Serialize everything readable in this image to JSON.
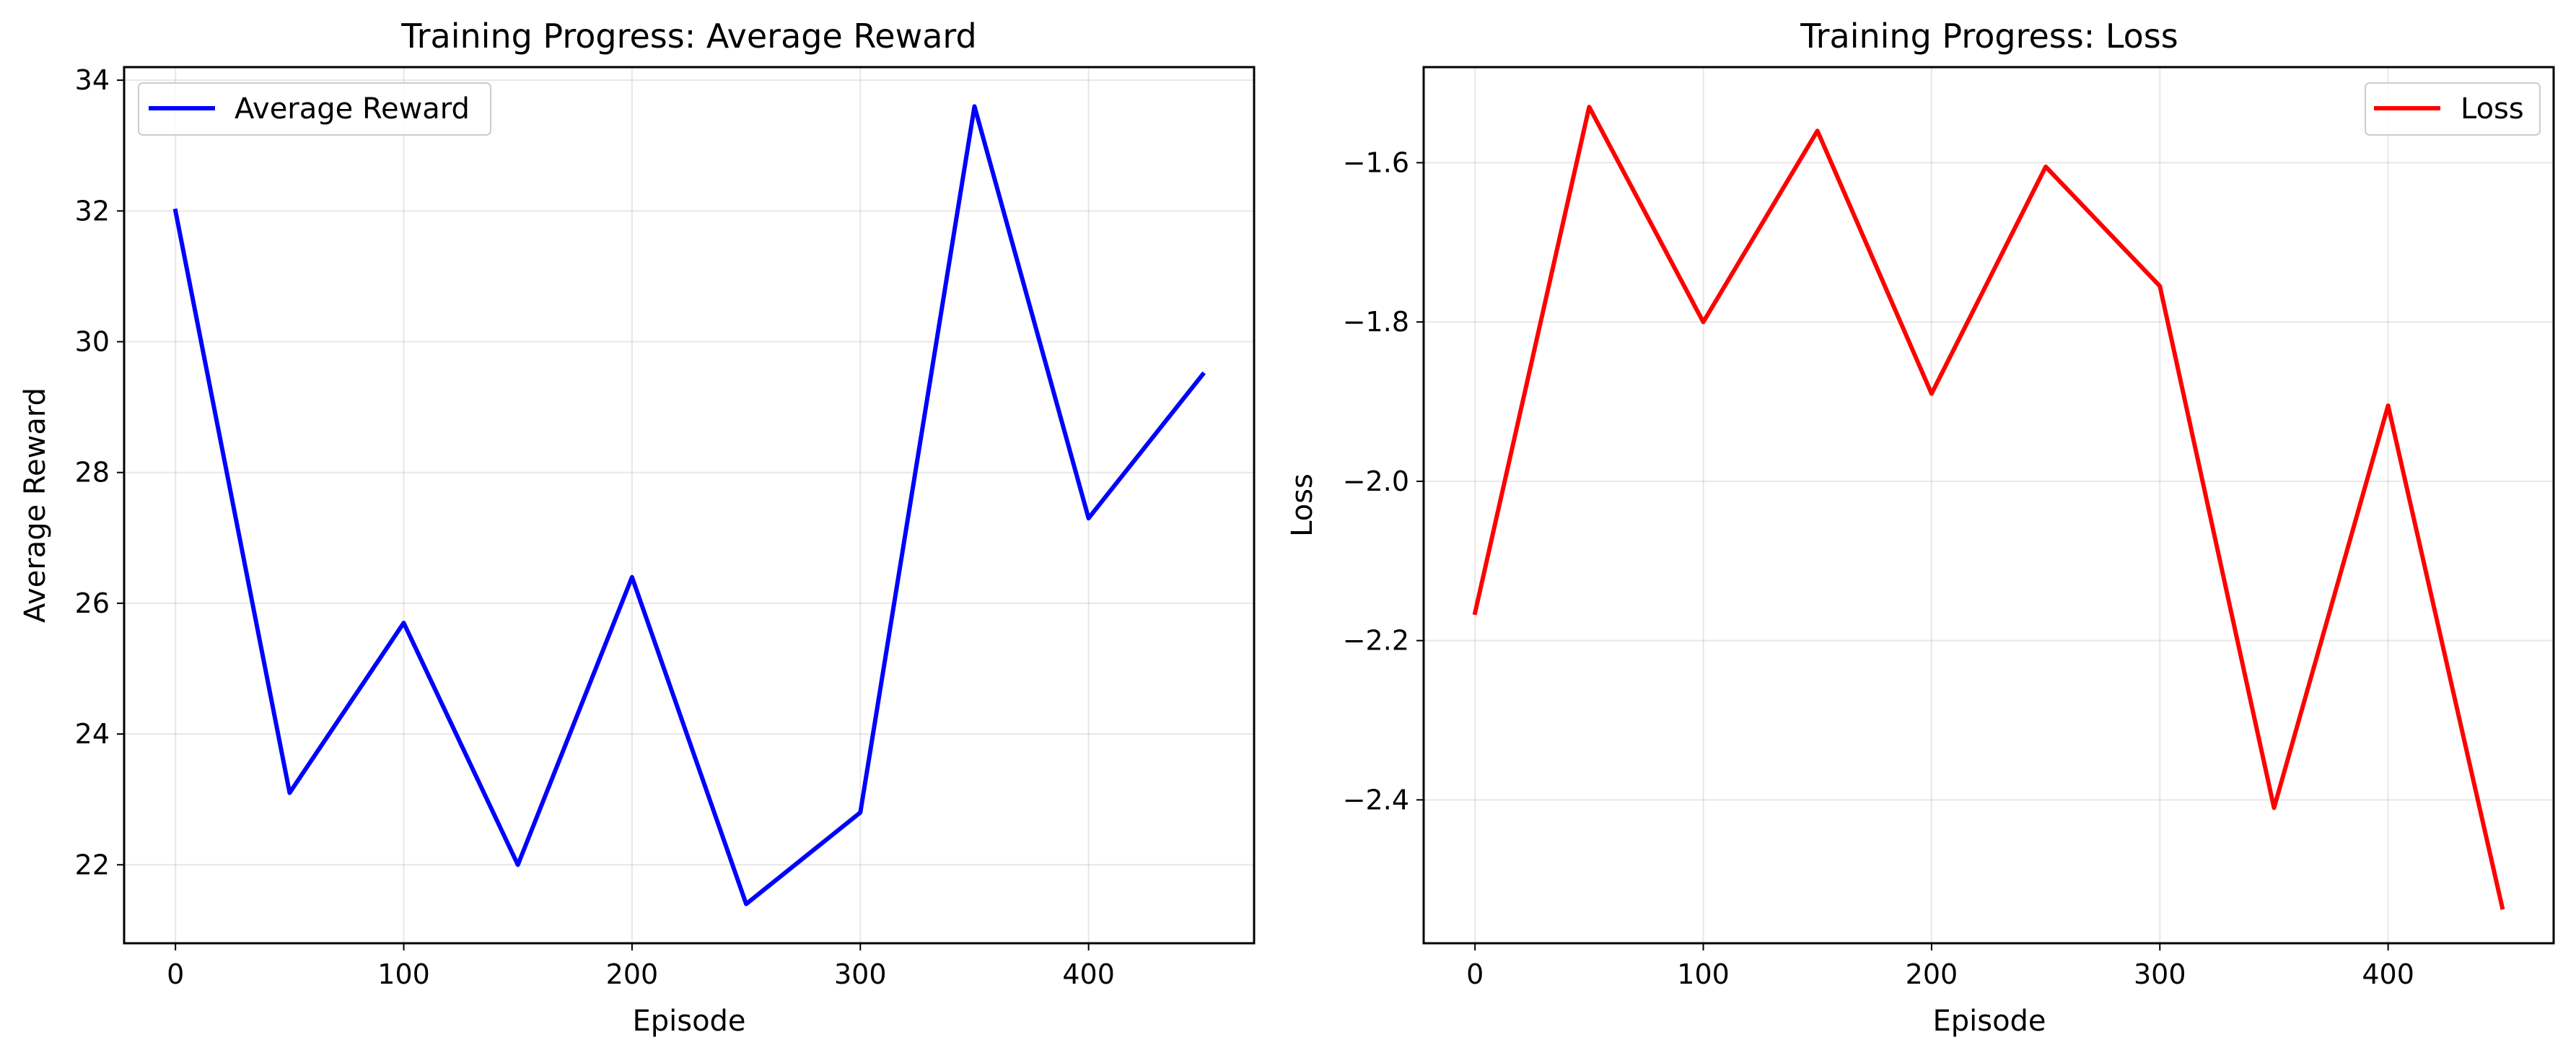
{
  "chart_data": [
    {
      "type": "line",
      "title": "Training Progress: Average Reward",
      "xlabel": "Episode",
      "ylabel": "Average Reward",
      "xlim": [
        -22.5,
        472.5
      ],
      "ylim": [
        20.8,
        34.2
      ],
      "xticks": [
        0,
        100,
        200,
        300,
        400
      ],
      "yticks": [
        22,
        24,
        26,
        28,
        30,
        32,
        34
      ],
      "grid": true,
      "legend_position": "upper left",
      "series": [
        {
          "name": "Average Reward",
          "color": "#0000ff",
          "x": [
            0,
            50,
            100,
            150,
            200,
            250,
            300,
            350,
            400,
            450
          ],
          "y": [
            32.0,
            23.1,
            25.7,
            22.0,
            26.4,
            21.4,
            22.8,
            33.6,
            27.3,
            29.5
          ]
        }
      ]
    },
    {
      "type": "line",
      "title": "Training Progress: Loss",
      "xlabel": "Episode",
      "ylabel": "Loss",
      "xlim": [
        -22.5,
        472.5
      ],
      "ylim": [
        -2.58,
        -1.48
      ],
      "xticks": [
        0,
        100,
        200,
        300,
        400
      ],
      "yticks": [
        -1.6,
        -1.8,
        -2.0,
        -2.2,
        -2.4
      ],
      "ytick_labels": [
        "−1.6",
        "−1.8",
        "−2.0",
        "−2.2",
        "−2.4"
      ],
      "grid": true,
      "legend_position": "upper right",
      "series": [
        {
          "name": "Loss",
          "color": "#ff0000",
          "x": [
            0,
            50,
            100,
            150,
            200,
            250,
            300,
            350,
            400,
            450
          ],
          "y": [
            -2.165,
            -1.53,
            -1.8,
            -1.56,
            -1.89,
            -1.605,
            -1.755,
            -2.41,
            -1.905,
            -2.535
          ]
        }
      ]
    }
  ]
}
